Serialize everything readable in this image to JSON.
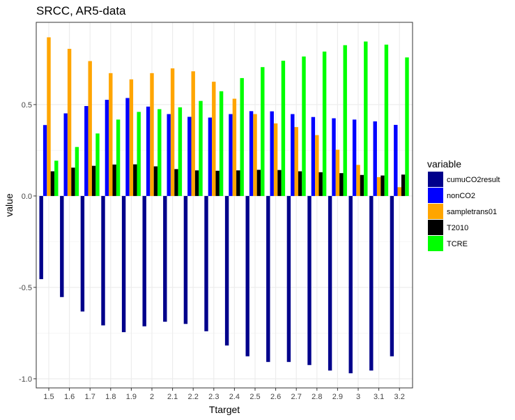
{
  "chart_data": {
    "type": "bar",
    "title": "SRCC, AR5-data",
    "xlabel": "Ttarget",
    "ylabel": "value",
    "ylim": [
      -1.05,
      0.95
    ],
    "yticks": [
      -1.0,
      -0.5,
      0.0,
      0.5
    ],
    "ytick_labels": [
      "-1.0",
      "-0.5",
      "0.0",
      "0.5"
    ],
    "grid": true,
    "legend_title": "variable",
    "legend_position": "right",
    "categories": [
      "1.5",
      "1.6",
      "1.7",
      "1.8",
      "1.9",
      "2",
      "2.1",
      "2.2",
      "2.3",
      "2.4",
      "2.5",
      "2.6",
      "2.7",
      "2.8",
      "2.9",
      "3",
      "3.1",
      "3.2"
    ],
    "series": [
      {
        "name": "cumuCO2result",
        "color": "#00008B",
        "values": [
          -0.455,
          -0.553,
          -0.632,
          -0.708,
          -0.745,
          -0.713,
          -0.688,
          -0.7,
          -0.74,
          -0.818,
          -0.877,
          -0.908,
          -0.908,
          -0.925,
          -0.955,
          -0.97,
          -0.955,
          -0.877
        ]
      },
      {
        "name": "nonCO2",
        "color": "#0000FF",
        "values": [
          0.388,
          0.452,
          0.492,
          0.526,
          0.536,
          0.489,
          0.448,
          0.433,
          0.429,
          0.448,
          0.464,
          0.463,
          0.448,
          0.432,
          0.425,
          0.418,
          0.408,
          0.389
        ]
      },
      {
        "name": "sampletrans01",
        "color": "#FFA500",
        "values": [
          0.868,
          0.805,
          0.738,
          0.672,
          0.638,
          0.672,
          0.698,
          0.682,
          0.625,
          0.532,
          0.448,
          0.397,
          0.377,
          0.333,
          0.253,
          0.17,
          0.103,
          0.048
        ]
      },
      {
        "name": "T2010",
        "color": "#000000",
        "values": [
          0.135,
          0.155,
          0.165,
          0.172,
          0.173,
          0.162,
          0.147,
          0.14,
          0.138,
          0.14,
          0.143,
          0.142,
          0.135,
          0.13,
          0.125,
          0.115,
          0.112,
          0.117
        ]
      },
      {
        "name": "TCRE",
        "color": "#00FF00",
        "values": [
          0.193,
          0.268,
          0.342,
          0.418,
          0.46,
          0.475,
          0.485,
          0.52,
          0.573,
          0.645,
          0.705,
          0.74,
          0.763,
          0.79,
          0.825,
          0.845,
          0.828,
          0.758
        ]
      }
    ]
  }
}
